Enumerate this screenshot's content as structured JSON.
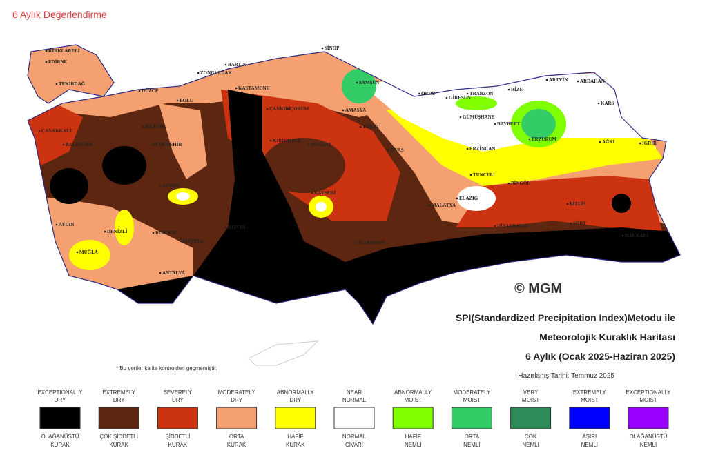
{
  "title": "6 Aylık Değerlendirme",
  "map": {
    "copyright": "© MGM",
    "heading": [
      "SPI(Standardized Precipitation Index)Metodu ile",
      "Meteorolojik Kuraklık Haritası",
      "6 Aylık (Ocak 2025-Haziran 2025)"
    ],
    "date": "Hazırlanış Tarihi: Temmuz 2025",
    "note": "* Bu veriler kalite kontrolden geçmemiştir.",
    "cities": [
      "KIRKLARELİ",
      "EDİRNE",
      "TEKİRDAĞ",
      "ÇANAKKALE",
      "BALIKESİR",
      "BİLECİK",
      "ESKİŞEHİR",
      "DÜZCE",
      "BOLU",
      "ZONGULDAK",
      "BARTIN",
      "KASTAMONU",
      "SİNOP",
      "SAMSUN",
      "ORDU",
      "GİRESUN",
      "TRABZON",
      "RİZE",
      "ARTVİN",
      "ARDAHAN",
      "KARS",
      "AĞRI",
      "IĞDIR",
      "ERZURUM",
      "BAYBURT",
      "GÜMÜŞHANE",
      "ERZİNCAN",
      "TUNCELİ",
      "BİNGÖL",
      "BİTLİS",
      "SİİRT",
      "HAKKARİ",
      "DİYARBAKIR",
      "MALATYA",
      "ELAZIĞ",
      "SİVAS",
      "TOKAT",
      "AMASYA",
      "ÇORUM",
      "YOZGAT",
      "KIRIKKALE",
      "ÇANKIRI",
      "KAYSERİ",
      "KONYA",
      "KARAMAN",
      "AFYON",
      "DENİZLİ",
      "AYDIN",
      "MUĞLA",
      "BURDUR",
      "ISPARTA",
      "ANTALYA"
    ]
  },
  "legend": [
    {
      "en": [
        "EXCEPTIONALLY",
        "DRY"
      ],
      "color": "#000000",
      "tr": [
        "OLAĞANÜSTÜ",
        "KURAK"
      ]
    },
    {
      "en": [
        "EXTREMELY",
        "DRY"
      ],
      "color": "#5c2610",
      "tr": [
        "ÇOK ŞİDDETLİ",
        "KURAK"
      ]
    },
    {
      "en": [
        "SEVERELY",
        "DRY"
      ],
      "color": "#cc3311",
      "tr": [
        "ŞİDDETLİ",
        "KURAK"
      ]
    },
    {
      "en": [
        "MODERATELY",
        "DRY"
      ],
      "color": "#f4a070",
      "tr": [
        "ORTA",
        "KURAK"
      ]
    },
    {
      "en": [
        "ABNORMALLY",
        "DRY"
      ],
      "color": "#ffff00",
      "tr": [
        "HAFİF",
        "KURAK"
      ]
    },
    {
      "en": [
        "NEAR",
        "NORMAL"
      ],
      "color": "#ffffff",
      "tr": [
        "NORMAL",
        "CİVARI"
      ]
    },
    {
      "en": [
        "ABNORMALLY",
        "MOIST"
      ],
      "color": "#80ff00",
      "tr": [
        "HAFİF",
        "NEMLİ"
      ]
    },
    {
      "en": [
        "MODERATELY",
        "MOIST"
      ],
      "color": "#33cc66",
      "tr": [
        "ORTA",
        "NEMLİ"
      ]
    },
    {
      "en": [
        "VERY",
        "MOIST"
      ],
      "color": "#2e8b57",
      "tr": [
        "ÇOK",
        "NEMLİ"
      ]
    },
    {
      "en": [
        "EXTREMELY",
        "MOIST"
      ],
      "color": "#0000ff",
      "tr": [
        "AŞIRI",
        "NEMLİ"
      ]
    },
    {
      "en": [
        "EXCEPTIONALLY",
        "MOIST"
      ],
      "color": "#9900ff",
      "tr": [
        "OLAĞANÜSTÜ",
        "NEMLİ"
      ]
    }
  ]
}
